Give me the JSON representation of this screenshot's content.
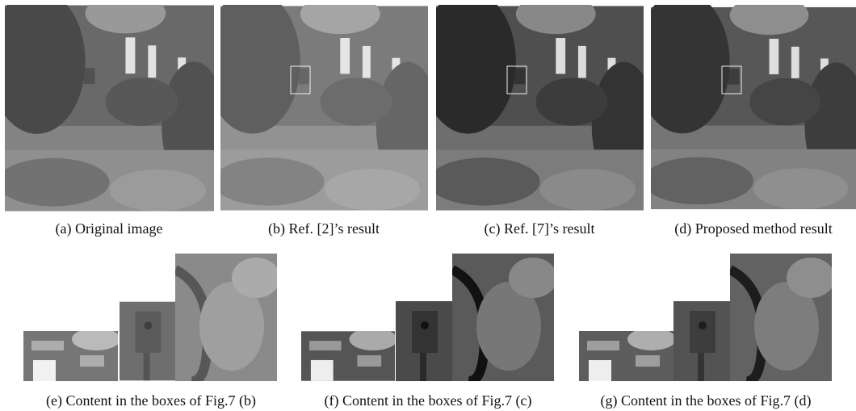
{
  "figure": {
    "top_captions": [
      "(a) Original image",
      "(b) Ref. [2]’s result",
      "(c) Ref. [7]’s result",
      "(d) Proposed method result"
    ],
    "bottom_captions": [
      "(e) Content in the boxes of Fig.7 (b)",
      "(f) Content in the boxes of Fig.7 (c)",
      "(g) Content in the boxes of Fig.7 (d)"
    ]
  }
}
